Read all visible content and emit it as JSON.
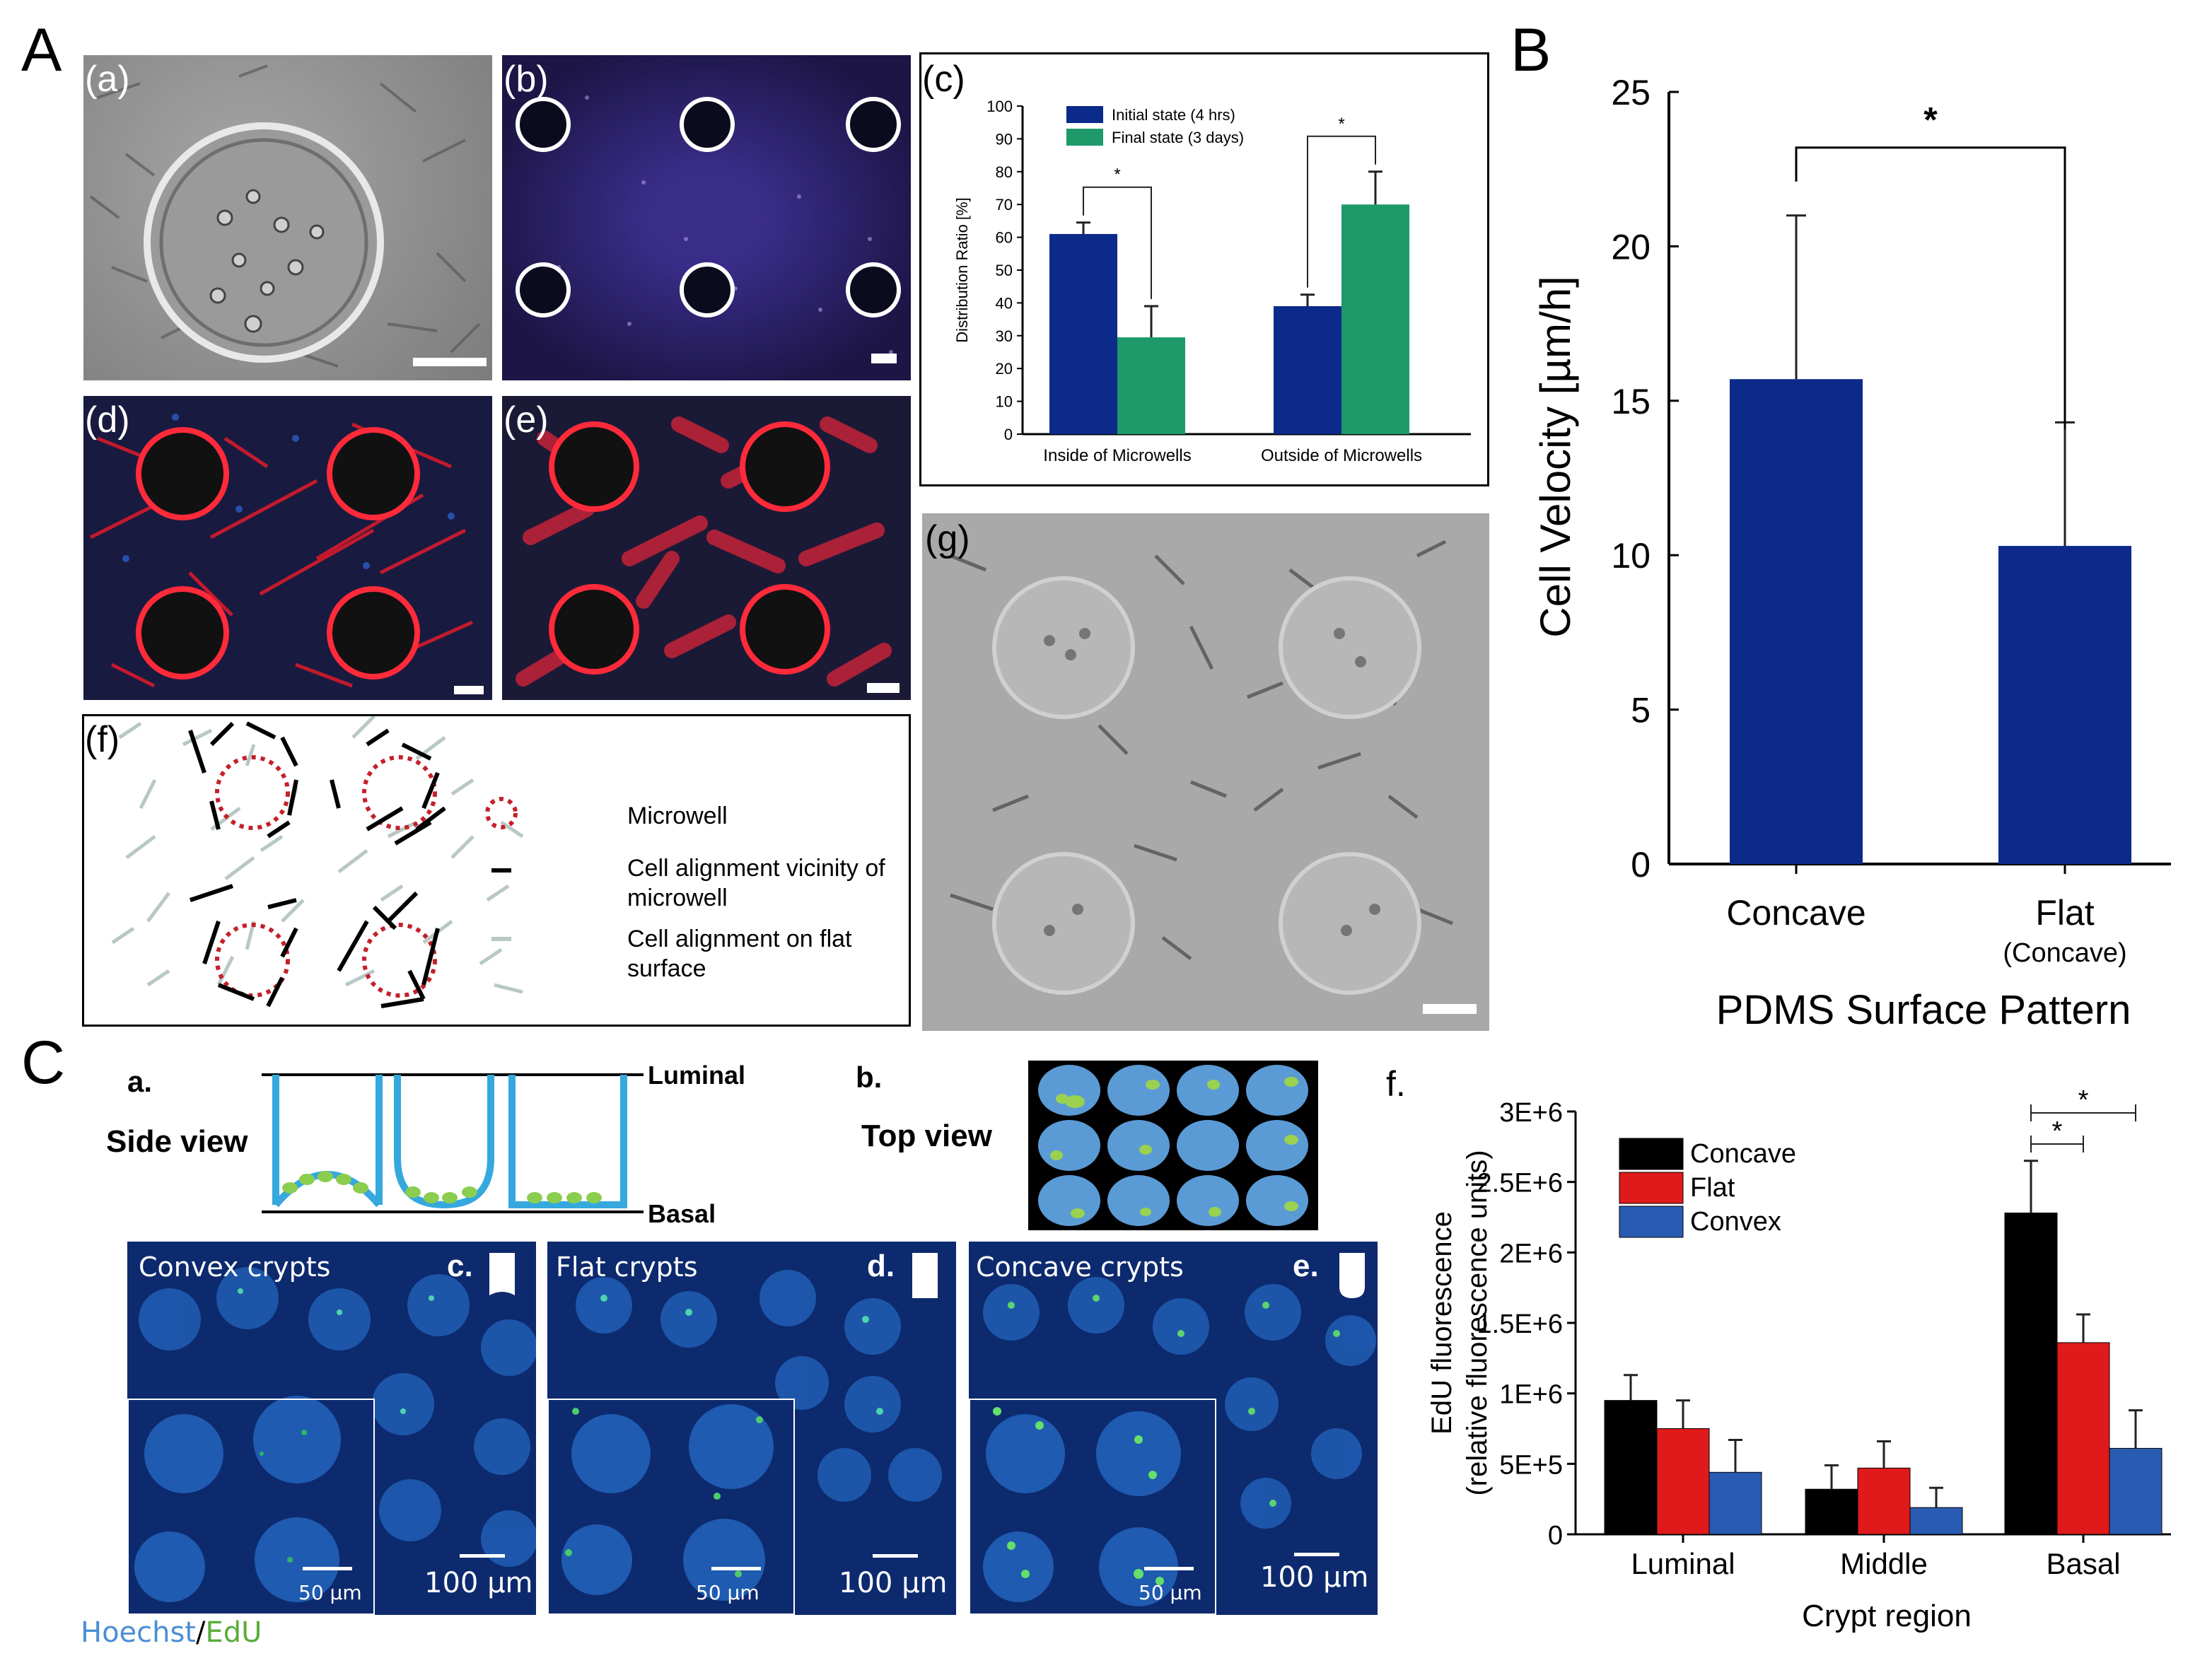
{
  "panel_labels": {
    "A": "A",
    "B": "B",
    "C": "C"
  },
  "sub_labels": {
    "a": "(a)",
    "b": "(b)",
    "c": "(c)",
    "d": "(d)",
    "e": "(e)",
    "f": "(f)",
    "g": "(g)"
  },
  "legend_f": {
    "microwell": "Microwell",
    "vicinity_line1": "Cell alignment vicinity of",
    "vicinity_line2": "microwell",
    "flat_line1": "Cell alignment on flat",
    "flat_line2": "surface"
  },
  "schematic": {
    "a_label": "a.",
    "side_view": "Side view",
    "luminal": "Luminal",
    "basal": "Basal",
    "b_label": "b.",
    "top_view": "Top view"
  },
  "crypt_panels": [
    {
      "title": "Convex crypts",
      "letter": "c.",
      "inset_scale": "50 µm",
      "scale": "100 µm"
    },
    {
      "title": "Flat crypts",
      "letter": "d.",
      "inset_scale": "50 µm",
      "scale": "100 µm"
    },
    {
      "title": "Concave crypts",
      "letter": "e.",
      "inset_scale": "50 µm",
      "scale": "100 µm"
    }
  ],
  "stain": {
    "hoechst": "Hoechst",
    "slash": "/",
    "edu": "EdU"
  },
  "colors": {
    "navy": "#0b2a8a",
    "green": "#1e9a6a",
    "black": "#000000",
    "red": "#e01a1a",
    "blue": "#2a5bb3",
    "hoechst": "#4a8fd4",
    "edu": "#5aac3a"
  },
  "chart_data": [
    {
      "id": "c",
      "type": "bar",
      "categories": [
        "Inside of Microwells",
        "Outside of Microwells"
      ],
      "series": [
        {
          "name": "Initial state (4 hrs)",
          "values": [
            61,
            39
          ],
          "errors": [
            3.5,
            3.5
          ]
        },
        {
          "name": "Final state (3 days)",
          "values": [
            29.5,
            70
          ],
          "errors": [
            9.5,
            10
          ]
        }
      ],
      "ylabel": "Distribution Ratio [%]",
      "ylim": [
        0,
        100
      ],
      "yticks": [
        0,
        10,
        20,
        30,
        40,
        50,
        60,
        70,
        80,
        90,
        100
      ],
      "significance": [
        "*",
        "*"
      ],
      "legend": "top-left"
    },
    {
      "id": "B",
      "type": "bar",
      "categories": [
        "Concave",
        "Flat"
      ],
      "category_sublabels": [
        "",
        "(Concave)"
      ],
      "series": [
        {
          "name": "",
          "values": [
            15.7,
            10.3
          ],
          "errors": [
            5.3,
            4.0
          ]
        }
      ],
      "xlabel": "PDMS Surface Pattern",
      "ylabel": "Cell Velocity [µm/h]",
      "ylim": [
        0,
        25
      ],
      "yticks": [
        "0",
        "5",
        "10",
        "15",
        "20",
        "25"
      ],
      "significance": [
        "*"
      ]
    },
    {
      "id": "f",
      "type": "bar",
      "title": "f.",
      "categories": [
        "Luminal",
        "Middle",
        "Basal"
      ],
      "series": [
        {
          "name": "Concave",
          "values": [
            950000,
            320000,
            2280000
          ],
          "errors": [
            180000,
            170000,
            370000
          ]
        },
        {
          "name": "Flat",
          "values": [
            750000,
            470000,
            1360000
          ],
          "errors": [
            200000,
            190000,
            200000
          ]
        },
        {
          "name": "Convex",
          "values": [
            440000,
            190000,
            610000
          ],
          "errors": [
            230000,
            140000,
            270000
          ]
        }
      ],
      "xlabel": "Crypt region",
      "ylabel_line1": "EdU fluorescence",
      "ylabel_line2": "(relative fluorescence units)",
      "ylim": [
        0,
        3000000
      ],
      "yticks": [
        "0",
        "5E+5",
        "1E+6",
        "1.5E+6",
        "2E+6",
        "2.5E+6",
        "3E+6"
      ],
      "significance": [
        "*",
        "*"
      ],
      "legend": "top-left"
    }
  ]
}
